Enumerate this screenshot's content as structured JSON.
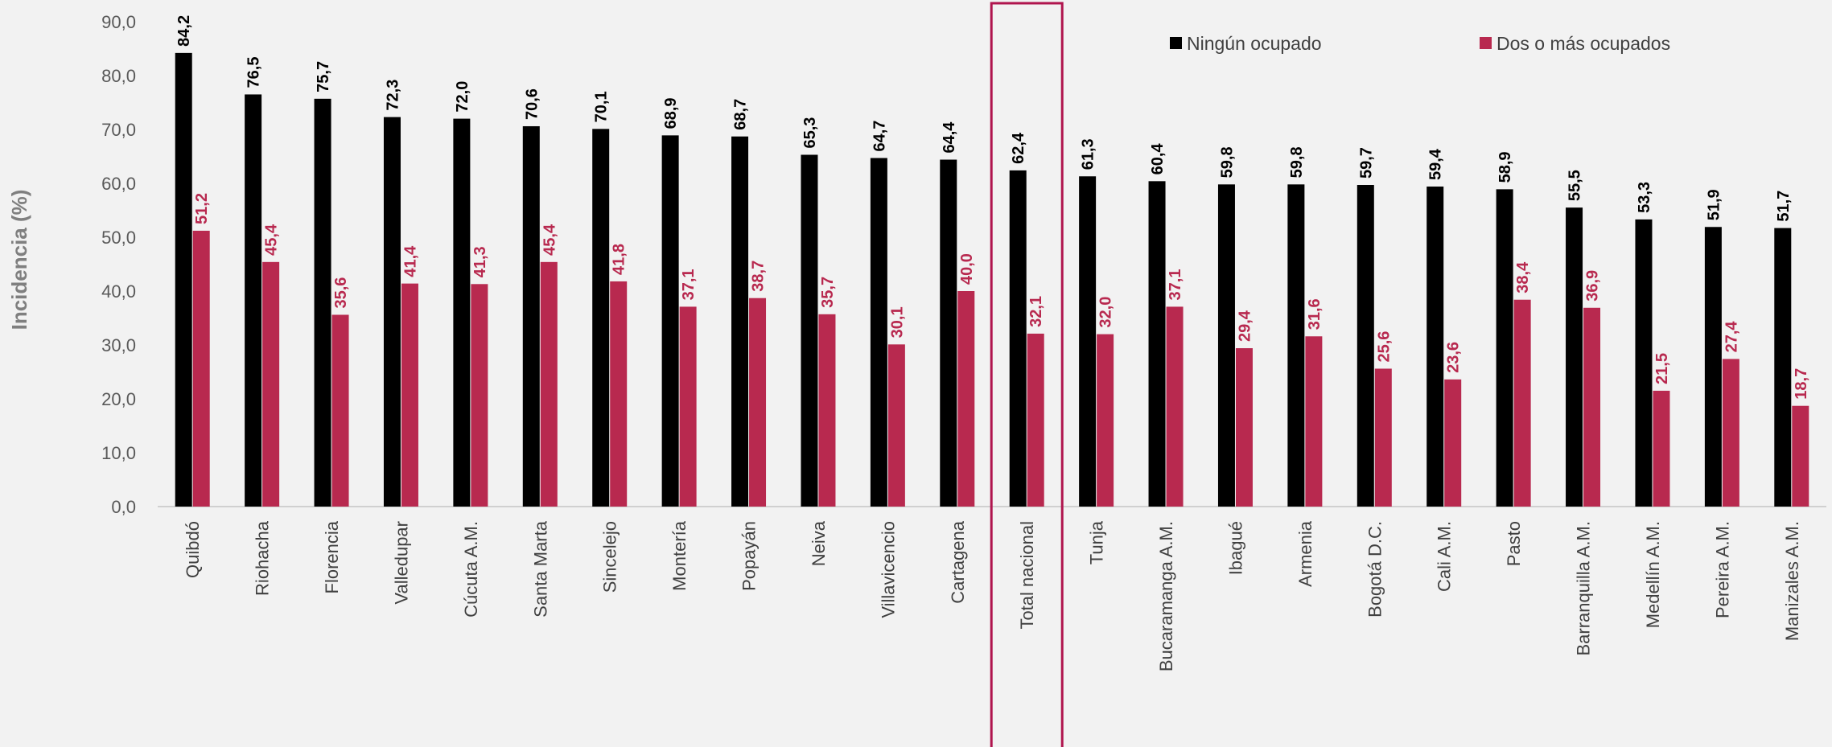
{
  "colors": {
    "ningun": "#000000",
    "dos": "#b8294f",
    "highlight": "#b0154e",
    "axis": "#d0d0d0"
  },
  "chart_data": {
    "type": "bar",
    "ylabel": "Incidencia (%)",
    "ylim": [
      0,
      90
    ],
    "yticks": [
      "0,0",
      "10,0",
      "20,0",
      "30,0",
      "40,0",
      "50,0",
      "60,0",
      "70,0",
      "80,0",
      "90,0"
    ],
    "legend_position": "top-right",
    "highlighted_category": "Total nacional",
    "categories": [
      "Quibdó",
      "Riohacha",
      "Florencia",
      "Valledupar",
      "Cúcuta A.M.",
      "Santa Marta",
      "Sincelejo",
      "Montería",
      "Popayán",
      "Neiva",
      "Villavicencio",
      "Cartagena",
      "Total nacional",
      "Tunja",
      "Bucaramanga A.M.",
      "Ibagué",
      "Armenia",
      "Bogotá D.C.",
      "Cali A.M.",
      "Pasto",
      "Barranquilla A.M.",
      "Medellín A.M.",
      "Pereira A.M.",
      "Manizales A.M."
    ],
    "series": [
      {
        "name": "Ningún ocupado",
        "values": [
          84.2,
          76.5,
          75.7,
          72.3,
          72.0,
          70.6,
          70.1,
          68.9,
          68.7,
          65.3,
          64.7,
          64.4,
          62.4,
          61.3,
          60.4,
          59.8,
          59.8,
          59.7,
          59.4,
          58.9,
          55.5,
          53.3,
          51.9,
          51.7
        ],
        "labels": [
          "84,2",
          "76,5",
          "75,7",
          "72,3",
          "72,0",
          "70,6",
          "70,1",
          "68,9",
          "68,7",
          "65,3",
          "64,7",
          "64,4",
          "62,4",
          "61,3",
          "60,4",
          "59,8",
          "59,8",
          "59,7",
          "59,4",
          "58,9",
          "55,5",
          "53,3",
          "51,9",
          "51,7"
        ]
      },
      {
        "name": "Dos o más ocupados",
        "values": [
          51.2,
          45.4,
          35.6,
          41.4,
          41.3,
          45.4,
          41.8,
          37.1,
          38.7,
          35.7,
          30.1,
          40.0,
          32.1,
          32.0,
          37.1,
          29.4,
          31.6,
          25.6,
          23.6,
          38.4,
          36.9,
          21.5,
          27.4,
          18.7
        ],
        "labels": [
          "51,2",
          "45,4",
          "35,6",
          "41,4",
          "41,3",
          "45,4",
          "41,8",
          "37,1",
          "38,7",
          "35,7",
          "30,1",
          "40,0",
          "32,1",
          "32,0",
          "37,1",
          "29,4",
          "31,6",
          "25,6",
          "23,6",
          "38,4",
          "36,9",
          "21,5",
          "27,4",
          "18,7"
        ]
      }
    ]
  }
}
